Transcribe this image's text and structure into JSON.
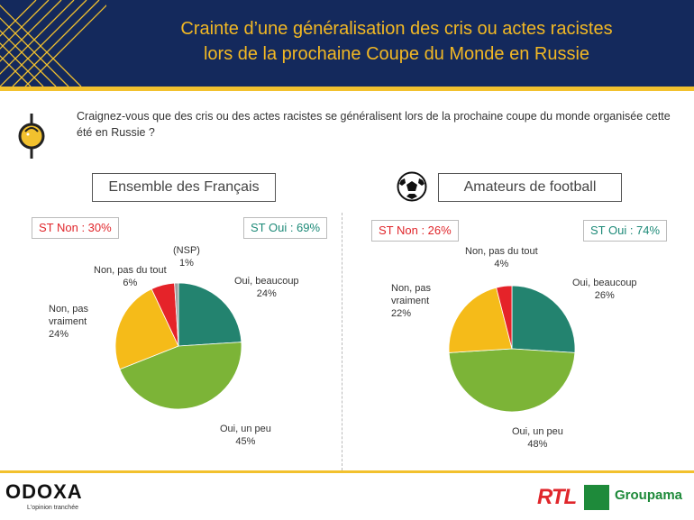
{
  "title": {
    "line1": "Crainte d’une généralisation des cris ou actes racistes",
    "line2": "lors de la prochaine Coupe du Monde en Russie"
  },
  "question": "Craignez-vous que des cris ou des actes racistes se généralisent lors de la prochaine coupe du monde organisée cette été en Russie ?",
  "colors": {
    "beaucoup": "#23836f",
    "un_peu": "#7cb437",
    "pas_vraiment": "#f5bb19",
    "pas_du_tout": "#e52329",
    "nsp": "#9e9e9e"
  },
  "chart_data": [
    {
      "type": "pie",
      "segment": "Ensemble des Français",
      "st_non": "ST Non : 30%",
      "st_oui": "ST Oui : 69%",
      "slices": [
        {
          "key": "beaucoup",
          "label_line1": "Oui, beaucoup",
          "label_line2": "",
          "value": 24,
          "text": "24%"
        },
        {
          "key": "un_peu",
          "label_line1": "Oui, un peu",
          "label_line2": "",
          "value": 45,
          "text": "45%"
        },
        {
          "key": "pas_vraiment",
          "label_line1": "Non, pas",
          "label_line2": "vraiment",
          "value": 24,
          "text": "24%"
        },
        {
          "key": "pas_du_tout",
          "label_line1": "Non, pas du tout",
          "label_line2": "",
          "value": 6,
          "text": "6%"
        },
        {
          "key": "nsp",
          "label_line1": "(NSP)",
          "label_line2": "",
          "value": 1,
          "text": "1%"
        }
      ]
    },
    {
      "type": "pie",
      "segment": "Amateurs de football",
      "st_non": "ST Non : 26%",
      "st_oui": "ST Oui : 74%",
      "slices": [
        {
          "key": "beaucoup",
          "label_line1": "Oui, beaucoup",
          "label_line2": "",
          "value": 26,
          "text": "26%"
        },
        {
          "key": "un_peu",
          "label_line1": "Oui, un peu",
          "label_line2": "",
          "value": 48,
          "text": "48%"
        },
        {
          "key": "pas_vraiment",
          "label_line1": "Non, pas",
          "label_line2": "vraiment",
          "value": 22,
          "text": "22%"
        },
        {
          "key": "pas_du_tout",
          "label_line1": "Non, pas du tout",
          "label_line2": "",
          "value": 4,
          "text": "4%"
        }
      ]
    }
  ],
  "footer": {
    "odoxa": "ODOXA",
    "odoxa_tagline": "L'opinion tranchée",
    "rtl": "RTL",
    "groupama": "Groupama"
  }
}
